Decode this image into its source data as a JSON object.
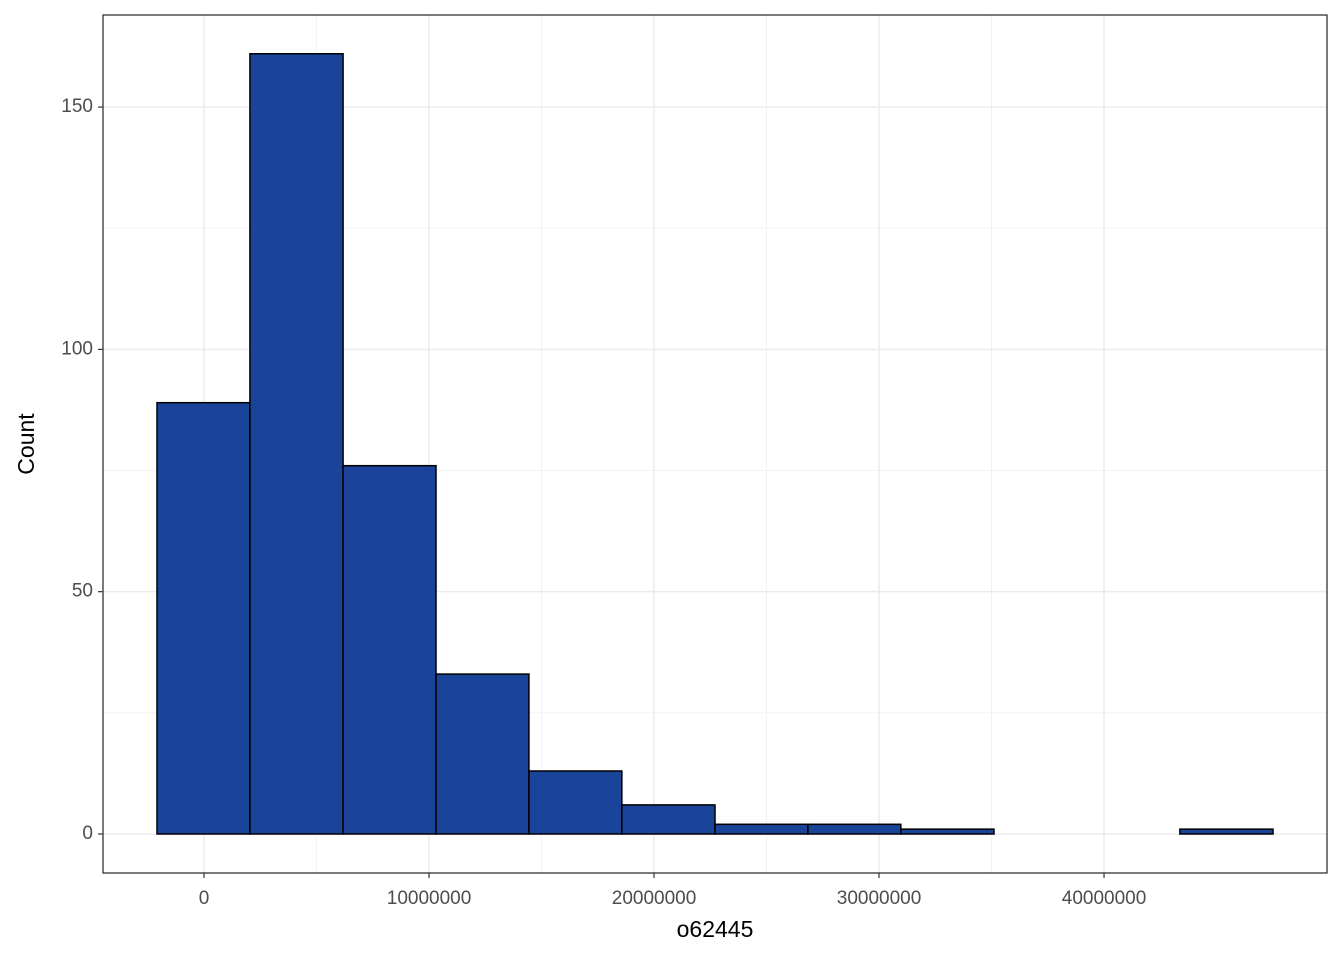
{
  "chart_data": {
    "type": "histogram",
    "x_label": "o62445",
    "y_label": "Count",
    "bins": [
      -2090000,
      2040000,
      6180000,
      10310000,
      14440000,
      18570000,
      22710000,
      26840000,
      30970000,
      35110000,
      39240000,
      43370000,
      47510000
    ],
    "counts": [
      89,
      161,
      76,
      33,
      13,
      6,
      2,
      2,
      1,
      0,
      0,
      1
    ],
    "color": "#1a4499",
    "edge_color": "#000000",
    "xlim": [
      -4490000,
      49910000
    ],
    "ylim": [
      -8.05,
      169
    ],
    "xticks": [
      0,
      10000000,
      20000000,
      30000000,
      40000000
    ],
    "yticks": [
      0,
      50,
      100,
      150
    ],
    "grid": true,
    "minor_grid": true
  }
}
